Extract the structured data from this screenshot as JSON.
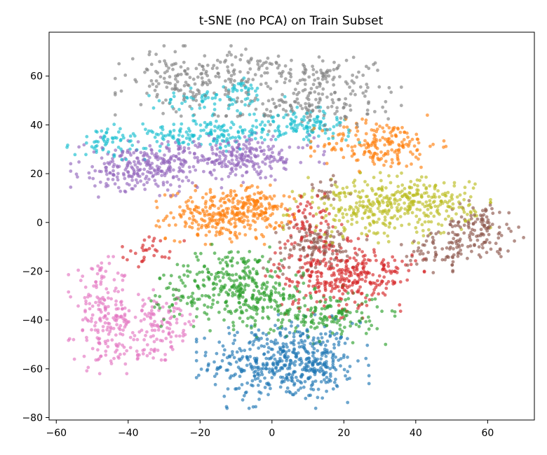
{
  "chart_data": {
    "type": "scatter",
    "title": "t-SNE (no PCA) on Train Subset",
    "xlabel": "",
    "ylabel": "",
    "xlim": [
      -62,
      73
    ],
    "ylim": [
      -81,
      78
    ],
    "xticks": [
      -60,
      -40,
      -20,
      0,
      20,
      40,
      60
    ],
    "yticks": [
      -80,
      -60,
      -40,
      -20,
      0,
      20,
      40,
      60
    ],
    "xtick_labels": [
      "−60",
      "−40",
      "−20",
      "0",
      "20",
      "40",
      "60"
    ],
    "ytick_labels": [
      "−80",
      "−60",
      "−40",
      "−20",
      "0",
      "20",
      "40",
      "60"
    ],
    "grid": false,
    "legend": "none",
    "marker_alpha": 0.65,
    "series": [
      {
        "color": "#1f77b4",
        "clusters": [
          {
            "cx": 3,
            "cy": -57,
            "sx": 10,
            "sy": 8,
            "n": 460
          },
          {
            "cx": 14,
            "cy": -60,
            "sx": 4,
            "sy": 5,
            "n": 60
          }
        ]
      },
      {
        "color": "#ff7f0e",
        "clusters": [
          {
            "cx": -13,
            "cy": 3,
            "sx": 8,
            "sy": 5,
            "n": 300
          },
          {
            "cx": -4,
            "cy": 8,
            "sx": 4,
            "sy": 4,
            "n": 60
          },
          {
            "cx": 30,
            "cy": 32,
            "sx": 8,
            "sy": 5,
            "n": 190
          }
        ]
      },
      {
        "color": "#2ca02c",
        "clusters": [
          {
            "cx": -12,
            "cy": -22,
            "sx": 8,
            "sy": 6,
            "n": 150
          },
          {
            "cx": -5,
            "cy": -30,
            "sx": 7,
            "sy": 6,
            "n": 180
          },
          {
            "cx": 15,
            "cy": -38,
            "sx": 8,
            "sy": 5,
            "n": 160
          },
          {
            "cx": -25,
            "cy": -33,
            "sx": 5,
            "sy": 4,
            "n": 40
          }
        ]
      },
      {
        "color": "#d62728",
        "clusters": [
          {
            "cx": 15,
            "cy": -20,
            "sx": 7,
            "sy": 8,
            "n": 230
          },
          {
            "cx": 28,
            "cy": -22,
            "sx": 6,
            "sy": 6,
            "n": 120
          },
          {
            "cx": 10,
            "cy": 2,
            "sx": 3,
            "sy": 5,
            "n": 50
          },
          {
            "cx": -34,
            "cy": -11,
            "sx": 4,
            "sy": 3,
            "n": 30
          }
        ]
      },
      {
        "color": "#8c564b",
        "clusters": [
          {
            "cx": 12,
            "cy": -10,
            "sx": 6,
            "sy": 5,
            "n": 120
          },
          {
            "cx": 58,
            "cy": -2,
            "sx": 5,
            "sy": 5,
            "n": 110
          },
          {
            "cx": 48,
            "cy": -11,
            "sx": 5,
            "sy": 4,
            "n": 80
          },
          {
            "cx": 15,
            "cy": 12,
            "sx": 3,
            "sy": 3,
            "n": 20
          }
        ]
      },
      {
        "color": "#9467bd",
        "clusters": [
          {
            "cx": -32,
            "cy": 23,
            "sx": 10,
            "sy": 5,
            "n": 260
          },
          {
            "cx": -7,
            "cy": 27,
            "sx": 9,
            "sy": 4,
            "n": 200
          },
          {
            "cx": -45,
            "cy": 20,
            "sx": 4,
            "sy": 4,
            "n": 40
          }
        ]
      },
      {
        "color": "#e377c2",
        "clusters": [
          {
            "cx": -47,
            "cy": -38,
            "sx": 4,
            "sy": 10,
            "n": 170
          },
          {
            "cx": -32,
            "cy": -42,
            "sx": 6,
            "sy": 6,
            "n": 130
          },
          {
            "cx": -40,
            "cy": -54,
            "sx": 5,
            "sy": 2,
            "n": 25
          }
        ]
      },
      {
        "color": "#7f7f7f",
        "clusters": [
          {
            "cx": -22,
            "cy": 58,
            "sx": 9,
            "sy": 6,
            "n": 180
          },
          {
            "cx": 12,
            "cy": 60,
            "sx": 10,
            "sy": 4,
            "n": 110
          },
          {
            "cx": 12,
            "cy": 47,
            "sx": 10,
            "sy": 4,
            "n": 120
          },
          {
            "cx": -3,
            "cy": 66,
            "sx": 4,
            "sy": 3,
            "n": 25
          }
        ]
      },
      {
        "color": "#bcbd22",
        "clusters": [
          {
            "cx": 32,
            "cy": 6,
            "sx": 12,
            "sy": 6,
            "n": 360
          },
          {
            "cx": 44,
            "cy": 10,
            "sx": 5,
            "sy": 3,
            "n": 60
          }
        ]
      },
      {
        "color": "#17becf",
        "clusters": [
          {
            "cx": -18,
            "cy": 36,
            "sx": 10,
            "sy": 3,
            "n": 150
          },
          {
            "cx": 8,
            "cy": 40,
            "sx": 7,
            "sy": 3,
            "n": 120
          },
          {
            "cx": -15,
            "cy": 51,
            "sx": 8,
            "sy": 3,
            "n": 70
          },
          {
            "cx": -45,
            "cy": 33,
            "sx": 5,
            "sy": 3,
            "n": 60
          },
          {
            "cx": -8,
            "cy": 56,
            "sx": 2,
            "sy": 2,
            "n": 15
          }
        ]
      }
    ]
  }
}
